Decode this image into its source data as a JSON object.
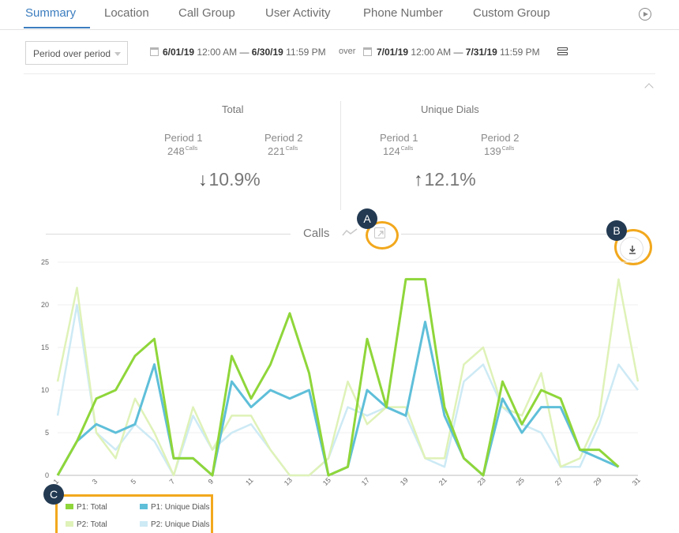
{
  "tabs": [
    {
      "label": "Summary",
      "active": true
    },
    {
      "label": "Location"
    },
    {
      "label": "Call Group"
    },
    {
      "label": "User Activity"
    },
    {
      "label": "Phone Number"
    },
    {
      "label": "Custom Group"
    }
  ],
  "filter": {
    "mode": "Period over period",
    "p1_start_date": "6/01/19",
    "p1_start_time": "12:00 AM",
    "p1_end_date": "6/30/19",
    "p1_end_time": "11:59 PM",
    "over": "over",
    "p2_start_date": "7/01/19",
    "p2_start_time": "12:00 AM",
    "p2_end_date": "7/31/19",
    "p2_end_time": "11:59 PM",
    "dash": "—"
  },
  "stats": {
    "total": {
      "title": "Total",
      "p1_label": "Period 1",
      "p1_value": "248",
      "unit": "Calls",
      "p2_label": "Period 2",
      "p2_value": "221",
      "change_arrow": "↓",
      "change": "10.9%"
    },
    "unique": {
      "title": "Unique Dials",
      "p1_label": "Period 1",
      "p1_value": "124",
      "unit": "Calls",
      "p2_label": "Period 2",
      "p2_value": "139",
      "change_arrow": "↑",
      "change": "12.1%"
    }
  },
  "chart_header": {
    "title": "Calls",
    "badge_a": "A",
    "badge_b": "B",
    "badge_c": "C"
  },
  "colors": {
    "accent": "#3b7dbf",
    "highlight": "#f2a81d",
    "badge": "#233a52",
    "p1_total": "#8fd63a",
    "p1_unique": "#5fbfd9",
    "p2_total": "#dff2b8",
    "p2_unique": "#cdeaf5"
  },
  "chart_data": {
    "type": "line",
    "x": [
      1,
      2,
      3,
      4,
      5,
      6,
      7,
      8,
      9,
      10,
      11,
      12,
      13,
      14,
      15,
      16,
      17,
      18,
      19,
      20,
      21,
      22,
      23,
      24,
      25,
      26,
      27,
      28,
      29,
      30,
      31
    ],
    "x_tick_labels": [
      "1",
      "3",
      "5",
      "7",
      "9",
      "11",
      "13",
      "15",
      "17",
      "19",
      "21",
      "23",
      "25",
      "27",
      "29",
      "31"
    ],
    "y_ticks": [
      0,
      5,
      10,
      15,
      20,
      25
    ],
    "ylim": [
      0,
      25
    ],
    "grid": true,
    "legend_position": "bottom-left",
    "series": [
      {
        "name": "P1: Total",
        "color_key": "p1_total",
        "values": [
          0,
          4,
          9,
          10,
          14,
          16,
          2,
          2,
          0,
          14,
          9,
          13,
          19,
          12,
          0,
          1,
          16,
          8,
          23,
          23,
          8,
          2,
          0,
          11,
          6,
          10,
          9,
          3,
          3,
          1,
          null
        ]
      },
      {
        "name": "P1: Unique Dials",
        "color_key": "p1_unique",
        "values": [
          0,
          4,
          6,
          5,
          6,
          13,
          2,
          2,
          0,
          11,
          8,
          10,
          9,
          10,
          0,
          1,
          10,
          8,
          7,
          18,
          7,
          2,
          0,
          9,
          5,
          8,
          8,
          3,
          2,
          1,
          null
        ]
      },
      {
        "name": "P2: Total",
        "color_key": "p2_total",
        "values": [
          11,
          22,
          5,
          2,
          9,
          5,
          0,
          8,
          3,
          7,
          7,
          3,
          0,
          0,
          2,
          11,
          6,
          8,
          8,
          2,
          2,
          13,
          15,
          8,
          7,
          12,
          1,
          2,
          7,
          23,
          11
        ]
      },
      {
        "name": "P2: Unique Dials",
        "color_key": "p2_unique",
        "values": [
          7,
          20,
          5,
          3,
          6,
          4,
          0,
          7,
          3,
          5,
          6,
          3,
          0,
          0,
          2,
          8,
          7,
          8,
          7,
          2,
          1,
          11,
          13,
          8,
          6,
          5,
          1,
          1,
          6,
          13,
          10
        ]
      }
    ]
  }
}
